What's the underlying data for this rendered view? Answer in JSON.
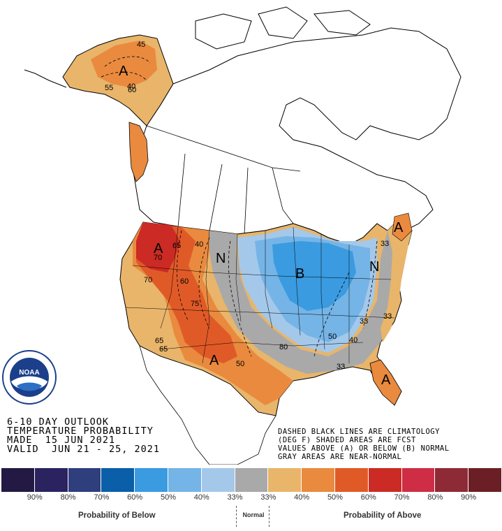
{
  "title": {
    "line1": "6-10 DAY OUTLOOK",
    "line2": "TEMPERATURE PROBABILITY",
    "line3": "MADE  15 JUN 2021",
    "line4": "VALID  JUN 21 - 25, 2021"
  },
  "notes": {
    "line1": "DASHED BLACK LINES ARE CLIMATOLOGY",
    "line2": "(DEG F) SHADED AREAS ARE FCST",
    "line3": "VALUES ABOVE (A) OR BELOW (B) NORMAL",
    "line4": "GRAY AREAS ARE NEAR-NORMAL"
  },
  "logo": {
    "text": "NOAA",
    "ring_text": "NATIONAL OCEANIC AND ATMOSPHERIC ADMINISTRATION · U.S. DEPARTMENT OF COMMERCE"
  },
  "map_labels": [
    {
      "id": "alaska-a",
      "text": "A"
    },
    {
      "id": "west-a",
      "text": "A"
    },
    {
      "id": "plains-n",
      "text": "N"
    },
    {
      "id": "midwest-b",
      "text": "B"
    },
    {
      "id": "east-n",
      "text": "N"
    },
    {
      "id": "southwest-a",
      "text": "A"
    },
    {
      "id": "maine-a",
      "text": "A"
    },
    {
      "id": "florida-a",
      "text": "A"
    }
  ],
  "contour_values": [
    "45",
    "40",
    "55",
    "60",
    "65",
    "70",
    "60",
    "75",
    "40",
    "50",
    "33",
    "33",
    "50",
    "40",
    "80",
    "33",
    "33",
    "65",
    "65",
    "70"
  ],
  "legend": {
    "colors": [
      "#231942",
      "#2a2360",
      "#2f3e7c",
      "#0b5ea8",
      "#3a9be0",
      "#75b4e6",
      "#a4c8ea",
      "#a9a9a9",
      "#e8b56a",
      "#e98a3f",
      "#e05a28",
      "#cc2a24",
      "#cf2d45",
      "#8e2a35",
      "#6b1f25"
    ],
    "labels": [
      "90%",
      "80%",
      "70%",
      "60%",
      "50%",
      "40%",
      "33%",
      "33%",
      "40%",
      "50%",
      "60%",
      "70%",
      "80%",
      "90%"
    ],
    "below_caption": "Probability of Below",
    "normal_caption": "Normal",
    "above_caption": "Probability of Above"
  }
}
